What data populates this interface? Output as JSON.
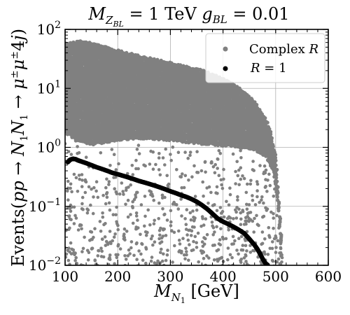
{
  "chart_data": {
    "type": "scatter",
    "title": "M_{Z_{BL}} = 1 TeV   g_{BL} = 0.01",
    "xlabel": "M_{N_1} [GeV]",
    "ylabel": "Events(pp → N_1N_1 → μ^±μ^±4j)",
    "xlim": [
      100,
      600
    ],
    "ylim": [
      0.01,
      100
    ],
    "yscale": "log",
    "grid": true,
    "x_ticks": [
      100,
      200,
      300,
      400,
      500,
      600
    ],
    "x_tick_labels": [
      "100",
      "200",
      "300",
      "400",
      "500",
      "600"
    ],
    "y_ticks": [
      0.01,
      0.1,
      1,
      10,
      100
    ],
    "y_tick_labels": [
      "10^{-2}",
      "10^{-1}",
      "10^{0}",
      "10^{1}",
      "10^{2}"
    ],
    "legend_position": "top-right",
    "series": [
      {
        "name": "Complex R",
        "color": "#808080",
        "marker": "circle",
        "upper_envelope": {
          "x": [
            110,
            130,
            150,
            200,
            250,
            300,
            350,
            380,
            400,
            420,
            440,
            460,
            470,
            480,
            490,
            500,
            505,
            510,
            513
          ],
          "y": [
            60,
            65,
            60,
            45,
            35,
            28,
            22,
            18,
            15,
            12,
            9,
            6,
            4.5,
            3.2,
            2.0,
            0.7,
            0.15,
            0.04,
            0.01
          ]
        },
        "dense_lower_edge": {
          "x": [
            100,
            120,
            150,
            200,
            250,
            300,
            350,
            400,
            430,
            460,
            480,
            495,
            505,
            512
          ],
          "y": [
            1.8,
            1.3,
            1.1,
            1.3,
            1.4,
            1.3,
            1.15,
            1.05,
            1.0,
            0.9,
            0.7,
            0.4,
            0.1,
            0.015
          ]
        }
      },
      {
        "name": "R = 1",
        "color": "#000000",
        "marker": "circle",
        "x": [
          105,
          110,
          115,
          120,
          125,
          130,
          140,
          150,
          160,
          170,
          180,
          190,
          200,
          210,
          220,
          230,
          240,
          250,
          260,
          270,
          280,
          290,
          300,
          310,
          320,
          330,
          340,
          350,
          360,
          370,
          380,
          390,
          400,
          410,
          420,
          430,
          440,
          450,
          460,
          465,
          470,
          475,
          480,
          485
        ],
        "y": [
          0.56,
          0.62,
          0.64,
          0.63,
          0.6,
          0.58,
          0.54,
          0.5,
          0.46,
          0.43,
          0.4,
          0.37,
          0.35,
          0.33,
          0.31,
          0.29,
          0.27,
          0.255,
          0.24,
          0.225,
          0.21,
          0.195,
          0.18,
          0.168,
          0.155,
          0.145,
          0.133,
          0.12,
          0.105,
          0.09,
          0.075,
          0.062,
          0.055,
          0.05,
          0.045,
          0.04,
          0.035,
          0.028,
          0.022,
          0.019,
          0.016,
          0.013,
          0.011,
          0.01
        ]
      }
    ]
  }
}
